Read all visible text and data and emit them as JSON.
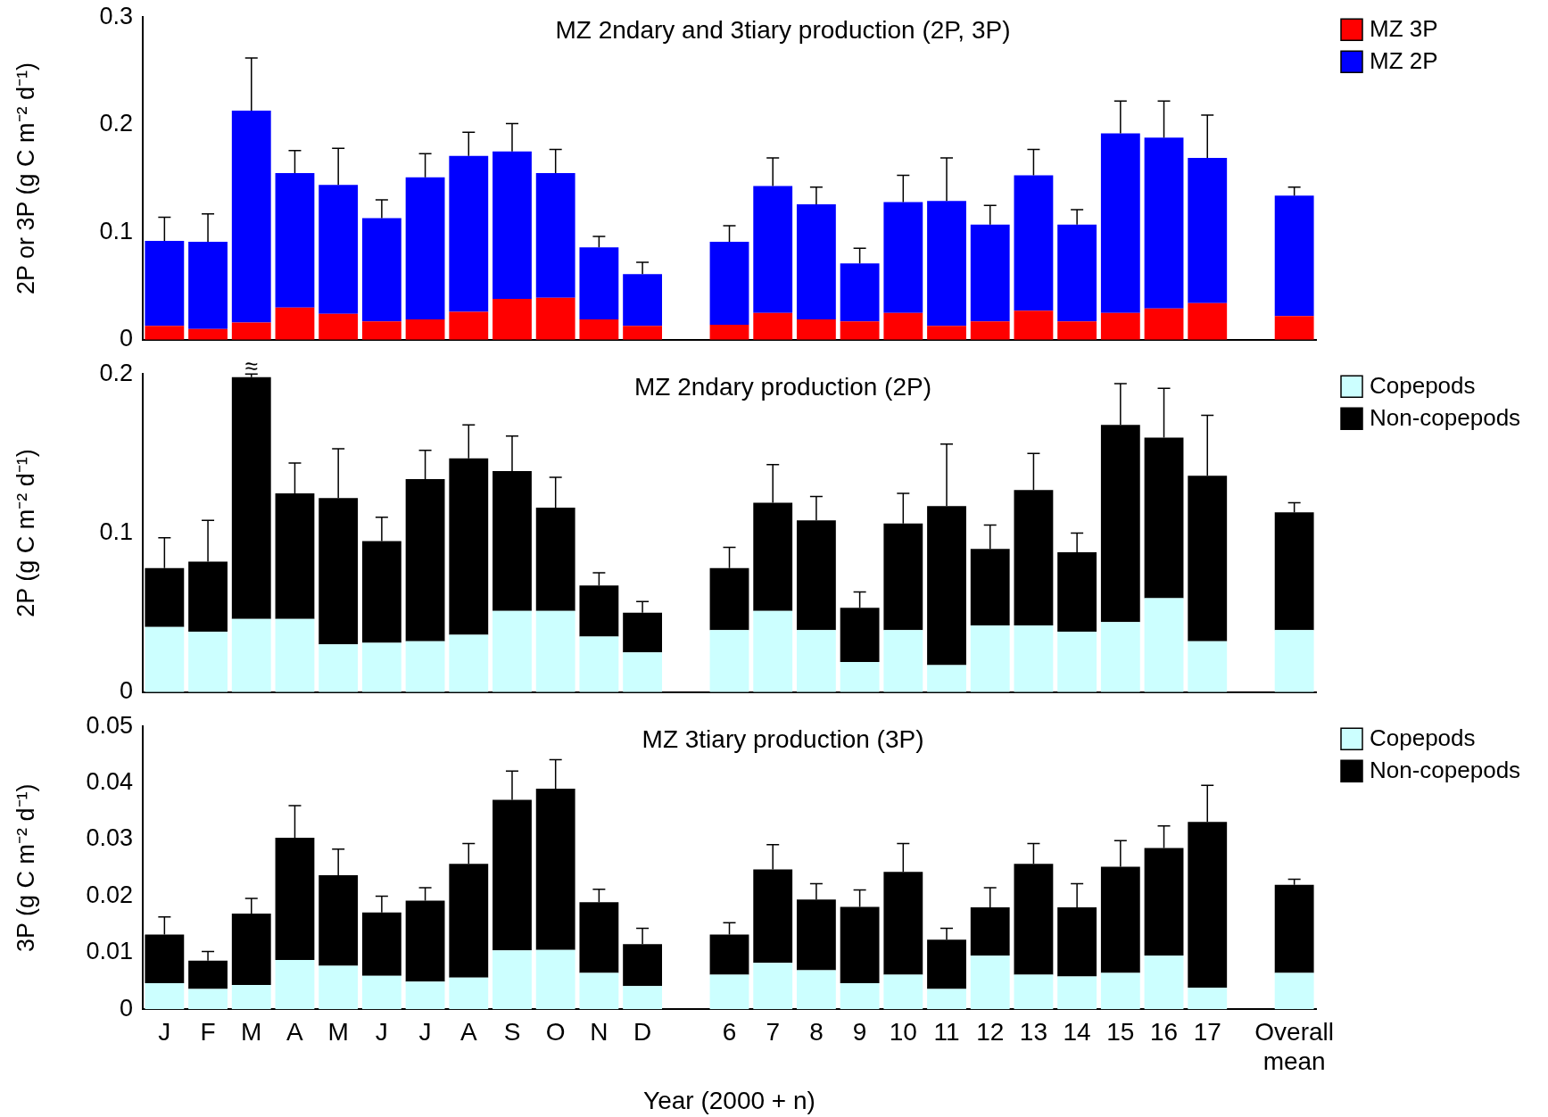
{
  "chart_data": [
    {
      "type": "bar",
      "title": "MZ 2ndary and 3tiary production (2P, 3P)",
      "ylabel": "2P or 3P (g C m⁻² d⁻¹)",
      "stacked": true,
      "legend": "top right",
      "tick_labels": "y",
      "grid": false,
      "categories": [
        "J",
        "F",
        "M",
        "A",
        "M",
        "J",
        "J",
        "A",
        "S",
        "O",
        "N",
        "D",
        null,
        "6",
        "7",
        "8",
        "9",
        "10",
        "11",
        "12",
        "13",
        "14",
        "15",
        "16",
        "17",
        null,
        "Overall mean"
      ],
      "ylim": [
        0,
        0.3
      ],
      "yticks": [
        0,
        0.1,
        0.2,
        0.3
      ],
      "series": [
        {
          "name": "MZ 3P",
          "color": "#ff0000",
          "values": [
            0.013,
            0.01,
            0.016,
            0.03,
            0.024,
            0.017,
            0.019,
            0.026,
            0.038,
            0.039,
            0.019,
            0.013,
            null,
            0.014,
            0.025,
            0.019,
            0.017,
            0.025,
            0.013,
            0.017,
            0.027,
            0.017,
            0.025,
            0.029,
            0.034,
            null,
            0.022
          ]
        },
        {
          "name": "MZ 2P",
          "color": "#0000ff",
          "values": [
            0.079,
            0.081,
            0.197,
            0.125,
            0.12,
            0.096,
            0.132,
            0.145,
            0.137,
            0.116,
            0.067,
            0.048,
            null,
            0.077,
            0.118,
            0.107,
            0.054,
            0.103,
            0.116,
            0.09,
            0.126,
            0.09,
            0.167,
            0.159,
            0.135,
            null,
            0.112
          ],
          "errors": [
            [
              0.092,
              0.114
            ],
            [
              0.091,
              0.117
            ],
            [
              0.213,
              0.262
            ],
            [
              0.155,
              0.176
            ],
            [
              0.144,
              0.178
            ],
            [
              0.113,
              0.13
            ],
            [
              0.151,
              0.173
            ],
            [
              0.171,
              0.193
            ],
            [
              0.175,
              0.201
            ],
            [
              0.155,
              0.177
            ],
            [
              0.086,
              0.096
            ],
            [
              0.061,
              0.072
            ],
            null,
            [
              0.091,
              0.106
            ],
            [
              0.143,
              0.169
            ],
            [
              0.126,
              0.142
            ],
            [
              0.071,
              0.085
            ],
            [
              0.128,
              0.153
            ],
            [
              0.129,
              0.169
            ],
            [
              0.107,
              0.125
            ],
            [
              0.153,
              0.177
            ],
            [
              0.107,
              0.121
            ],
            [
              0.192,
              0.222
            ],
            [
              0.188,
              0.222
            ],
            [
              0.169,
              0.209
            ],
            null,
            [
              0.134,
              0.142
            ]
          ]
        }
      ]
    },
    {
      "type": "bar",
      "title": "MZ 2ndary production (2P)",
      "ylabel": "2P (g C m⁻² d⁻¹)",
      "stacked": true,
      "legend": "top right",
      "tick_labels": "y",
      "grid": false,
      "categories": [
        "J",
        "F",
        "M",
        "A",
        "M",
        "J",
        "J",
        "A",
        "S",
        "O",
        "N",
        "D",
        null,
        "6",
        "7",
        "8",
        "9",
        "10",
        "11",
        "12",
        "13",
        "14",
        "15",
        "16",
        "17",
        null,
        "Overall mean"
      ],
      "ylim": [
        0,
        0.2
      ],
      "yticks": [
        0,
        0.1,
        0.2
      ],
      "annotations": [
        {
          "text": "≈",
          "x": "M",
          "y": 0.2
        }
      ],
      "series": [
        {
          "name": "Copepods",
          "color": "#ccffff",
          "values": [
            0.041,
            0.038,
            0.046,
            0.046,
            0.03,
            0.031,
            0.032,
            0.036,
            0.051,
            0.051,
            0.035,
            0.025,
            null,
            0.039,
            0.051,
            0.039,
            0.019,
            0.039,
            0.017,
            0.042,
            0.042,
            0.038,
            0.044,
            0.059,
            0.032,
            null,
            0.039
          ]
        },
        {
          "name": "Non-copepods",
          "color": "#000000",
          "values": [
            0.037,
            0.044,
            0.152,
            0.079,
            0.092,
            0.064,
            0.102,
            0.111,
            0.088,
            0.065,
            0.032,
            0.025,
            null,
            0.039,
            0.068,
            0.069,
            0.034,
            0.067,
            0.1,
            0.048,
            0.085,
            0.05,
            0.124,
            0.101,
            0.104,
            null,
            0.074
          ],
          "errors": [
            [
              0.078,
              0.097
            ],
            [
              0.082,
              0.108
            ],
            [
              0.198,
              0.2
            ],
            [
              0.125,
              0.144
            ],
            [
              0.122,
              0.153
            ],
            [
              0.095,
              0.11
            ],
            [
              0.134,
              0.152
            ],
            [
              0.147,
              0.168
            ],
            [
              0.139,
              0.161
            ],
            [
              0.116,
              0.135
            ],
            [
              0.067,
              0.075
            ],
            [
              0.05,
              0.057
            ],
            null,
            [
              0.078,
              0.091
            ],
            [
              0.119,
              0.143
            ],
            [
              0.108,
              0.123
            ],
            [
              0.053,
              0.063
            ],
            [
              0.106,
              0.125
            ],
            [
              0.117,
              0.156
            ],
            [
              0.09,
              0.105
            ],
            [
              0.127,
              0.15
            ],
            [
              0.088,
              0.1
            ],
            [
              0.168,
              0.194
            ],
            [
              0.16,
              0.191
            ],
            [
              0.136,
              0.174
            ],
            null,
            [
              0.113,
              0.119
            ]
          ]
        }
      ]
    },
    {
      "type": "bar",
      "title": "MZ 3tiary production (3P)",
      "ylabel": "3P (g C m⁻² d⁻¹)",
      "xlabel": "Year (2000 + n)",
      "stacked": true,
      "legend": "top right",
      "grid": false,
      "categories": [
        "J",
        "F",
        "M",
        "A",
        "M",
        "J",
        "J",
        "A",
        "S",
        "O",
        "N",
        "D",
        null,
        "6",
        "7",
        "8",
        "9",
        "10",
        "11",
        "12",
        "13",
        "14",
        "15",
        "16",
        "17",
        null,
        "Overall mean"
      ],
      "ylim": [
        0,
        0.05
      ],
      "yticks": [
        0,
        0.01,
        0.02,
        0.03,
        0.04,
        0.05
      ],
      "series": [
        {
          "name": "Copepods",
          "color": "#ccffff",
          "values": [
            0.0046,
            0.0036,
            0.0043,
            0.0087,
            0.0077,
            0.0059,
            0.0049,
            0.0056,
            0.0104,
            0.0105,
            0.0064,
            0.0041,
            null,
            0.0061,
            0.0082,
            0.0069,
            0.0046,
            0.0061,
            0.0036,
            0.0095,
            0.0061,
            0.0058,
            0.0064,
            0.0095,
            0.0038,
            null,
            0.0064
          ]
        },
        {
          "name": "Non-copepods",
          "color": "#000000",
          "values": [
            0.0086,
            0.005,
            0.0126,
            0.0216,
            0.016,
            0.0112,
            0.0143,
            0.0201,
            0.0266,
            0.0285,
            0.0125,
            0.0074,
            null,
            0.0071,
            0.0165,
            0.0125,
            0.0135,
            0.0182,
            0.0087,
            0.0085,
            0.0196,
            0.0122,
            0.0188,
            0.019,
            0.0293,
            null,
            0.0156
          ],
          "errors": [
            [
              0.0132,
              0.0163
            ],
            [
              0.0086,
              0.0102
            ],
            [
              0.0169,
              0.0196
            ],
            [
              0.0303,
              0.036
            ],
            [
              0.0237,
              0.0283
            ],
            [
              0.0171,
              0.02
            ],
            [
              0.0192,
              0.0215
            ],
            [
              0.0257,
              0.0293
            ],
            [
              0.037,
              0.0421
            ],
            [
              0.039,
              0.0441
            ],
            [
              0.0189,
              0.0212
            ],
            [
              0.0115,
              0.0143
            ],
            null,
            [
              0.0132,
              0.0153
            ],
            [
              0.0247,
              0.0291
            ],
            [
              0.0194,
              0.0222
            ],
            [
              0.0181,
              0.0211
            ],
            [
              0.0243,
              0.0293
            ],
            [
              0.0123,
              0.0143
            ],
            [
              0.018,
              0.0215
            ],
            [
              0.0257,
              0.0293
            ],
            [
              0.018,
              0.0222
            ],
            [
              0.0252,
              0.0298
            ],
            [
              0.0285,
              0.0324
            ],
            [
              0.0331,
              0.0396
            ],
            null,
            [
              0.022,
              0.023
            ]
          ]
        }
      ]
    }
  ]
}
